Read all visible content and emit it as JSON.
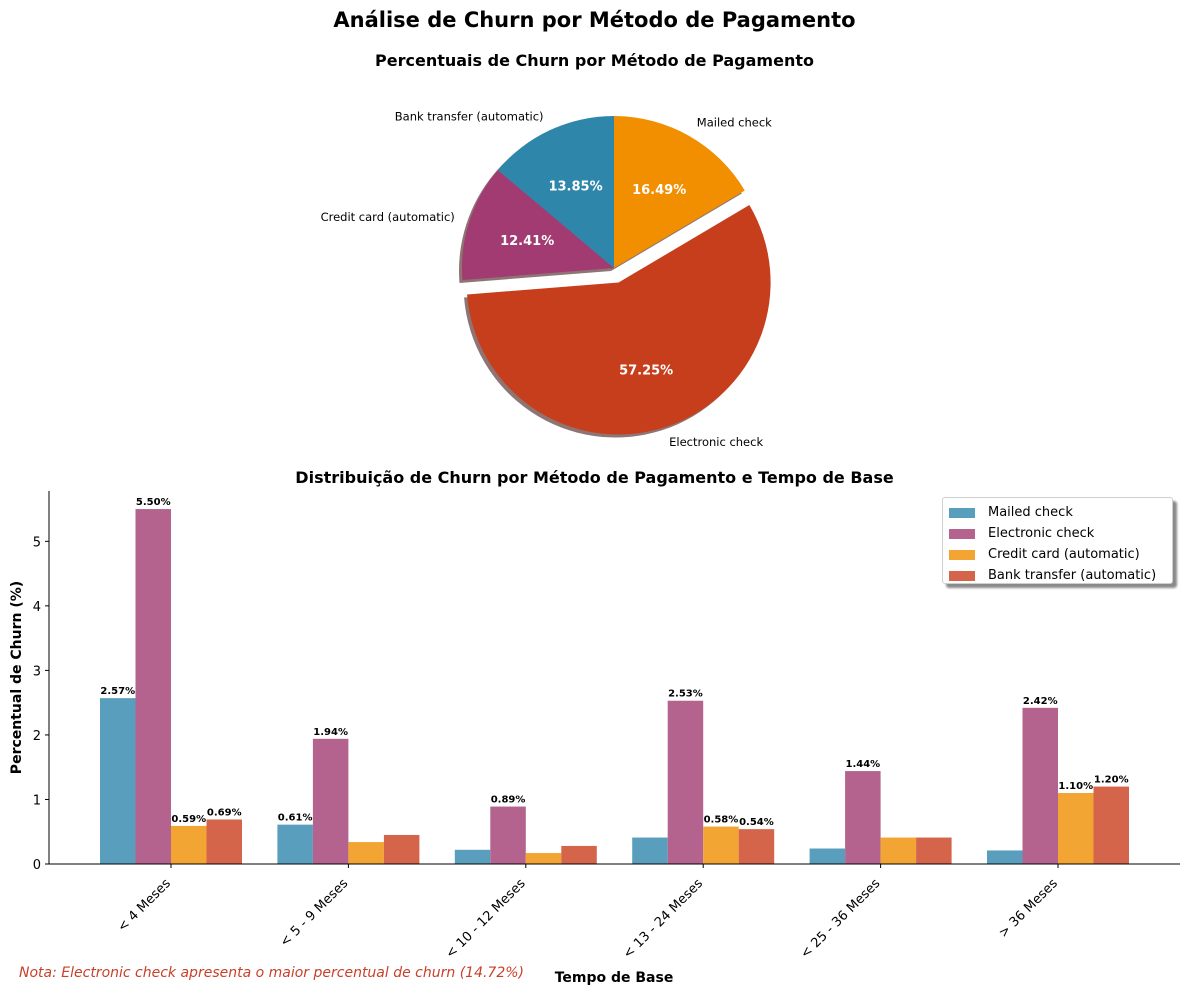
{
  "figure": {
    "title": "Análise de Churn por Método de Pagamento",
    "note": "Nota: Electronic check apresenta o maior percentual de churn (14.72%)"
  },
  "colors": {
    "Mailed check": "#f18f01",
    "Electronic check": "#c73e1d",
    "Credit card (automatic)": "#a23b72",
    "Bank transfer (automatic)": "#2e86ab",
    "bar_Mailed check": "#599fbd",
    "bar_Electronic check": "#b4628e",
    "bar_Credit card (automatic)": "#f3a534",
    "bar_Bank transfer (automatic)": "#d4654a"
  },
  "chart_data": [
    {
      "type": "pie",
      "title": "Percentuais de Churn por Método de Pagamento",
      "labels": [
        "Mailed check",
        "Electronic check",
        "Credit card (automatic)",
        "Bank transfer (automatic)"
      ],
      "values": [
        16.49,
        57.25,
        12.41,
        13.85
      ],
      "value_labels": [
        "16.49%",
        "57.25%",
        "12.41%",
        "13.85%"
      ],
      "exploded": "Electronic check",
      "start": "top, clockwise"
    },
    {
      "type": "bar",
      "title": "Distribuição de Churn por Método de Pagamento e Tempo de Base",
      "xlabel": "Tempo de Base",
      "ylabel": "Percentual de Churn (%)",
      "ylim": [
        0,
        5.78
      ],
      "yticks": [
        0,
        1,
        2,
        3,
        4,
        5
      ],
      "grid": false,
      "legend_position": "top-right",
      "categories": [
        "< 4 Meses",
        "< 5 - 9 Meses",
        "< 10 - 12 Meses",
        "< 13 - 24 Meses",
        "< 25 - 36 Meses",
        "> 36 Meses"
      ],
      "series": [
        {
          "name": "Mailed check",
          "values": [
            2.57,
            0.61,
            0.22,
            0.41,
            0.24,
            0.21
          ],
          "labels": [
            "2.57%",
            "0.61%",
            "",
            "",
            "",
            ""
          ]
        },
        {
          "name": "Electronic check",
          "values": [
            5.5,
            1.94,
            0.89,
            2.53,
            1.44,
            2.42
          ],
          "labels": [
            "5.50%",
            "1.94%",
            "0.89%",
            "2.53%",
            "1.44%",
            "2.42%"
          ]
        },
        {
          "name": "Credit card (automatic)",
          "values": [
            0.59,
            0.34,
            0.17,
            0.58,
            0.41,
            1.1
          ],
          "labels": [
            "0.59%",
            "",
            "",
            "0.58%",
            "",
            "1.10%"
          ]
        },
        {
          "name": "Bank transfer (automatic)",
          "values": [
            0.69,
            0.45,
            0.28,
            0.54,
            0.41,
            1.2
          ],
          "labels": [
            "0.69%",
            "",
            "",
            "0.54%",
            "",
            "1.20%"
          ]
        }
      ]
    }
  ]
}
